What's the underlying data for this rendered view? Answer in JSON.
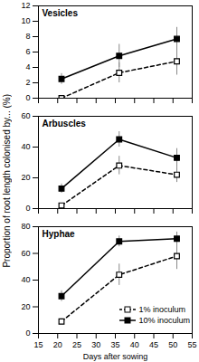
{
  "chart_data": [
    {
      "type": "line",
      "title": "Vesicles",
      "x": [
        21,
        36,
        51
      ],
      "series": [
        {
          "name": "1% inoculum",
          "color": "#000000",
          "marker": "square-open",
          "line_style": "dashed",
          "values": [
            0,
            3.3,
            4.8
          ],
          "errors": [
            0,
            1.3,
            1.8
          ]
        },
        {
          "name": "10% inoculum",
          "color": "#000000",
          "marker": "square",
          "line_style": "solid",
          "values": [
            2.5,
            5.5,
            7.7
          ],
          "errors": [
            0.7,
            1.5,
            1.5
          ]
        }
      ],
      "xlim": [
        15,
        55
      ],
      "xticks": [
        15,
        20,
        25,
        30,
        35,
        40,
        45,
        50,
        55
      ],
      "ylim": [
        0,
        12
      ],
      "yticks": [
        0,
        2,
        4,
        6,
        8,
        10,
        12
      ],
      "tick_labels": "y"
    },
    {
      "type": "line",
      "title": "Arbuscles",
      "y_label": "Proportion of root length colonised by... (%)",
      "x": [
        21,
        36,
        51
      ],
      "series": [
        {
          "name": "1% inoculum",
          "color": "#000000",
          "marker": "square-open",
          "line_style": "dashed",
          "values": [
            2,
            28,
            22
          ],
          "errors": [
            1,
            6,
            5
          ]
        },
        {
          "name": "10% inoculum",
          "color": "#000000",
          "marker": "square",
          "line_style": "solid",
          "values": [
            13,
            45,
            33
          ],
          "errors": [
            3,
            5,
            6
          ]
        }
      ],
      "xlim": [
        15,
        55
      ],
      "xticks": [
        15,
        20,
        25,
        30,
        35,
        40,
        45,
        50,
        55
      ],
      "ylim": [
        0,
        60
      ],
      "yticks": [
        0,
        20,
        40,
        60
      ],
      "tick_labels": "y"
    },
    {
      "type": "line",
      "title": "Hyphae",
      "x_label": "Days after sowing",
      "x": [
        21,
        36,
        51
      ],
      "series": [
        {
          "name": "1% inoculum",
          "color": "#000000",
          "marker": "square-open",
          "line_style": "dashed",
          "values": [
            9,
            44,
            58
          ],
          "errors": [
            2,
            8,
            10
          ]
        },
        {
          "name": "10% inoculum",
          "color": "#000000",
          "marker": "square",
          "line_style": "solid",
          "values": [
            28,
            69,
            71
          ],
          "errors": [
            4,
            4,
            5
          ]
        }
      ],
      "xlim": [
        15,
        55
      ],
      "xticks": [
        15,
        20,
        25,
        30,
        35,
        40,
        45,
        50,
        55
      ],
      "ylim": [
        0,
        80
      ],
      "yticks": [
        0,
        20,
        40,
        60,
        80
      ],
      "legend": "bottom-right"
    }
  ]
}
